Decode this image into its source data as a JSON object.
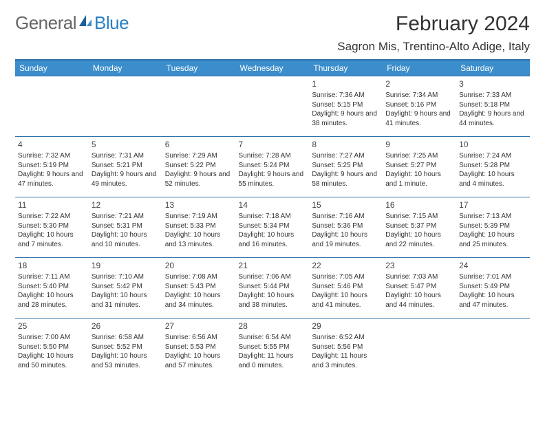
{
  "logo": {
    "text1": "General",
    "text2": "Blue"
  },
  "title": "February 2024",
  "subtitle": "Sagron Mis, Trentino-Alto Adige, Italy",
  "colors": {
    "header_bg": "#3b8dcb",
    "header_border": "#2d6fa8",
    "header_text": "#ffffff",
    "body_text": "#333333",
    "logo_accent": "#2d7fc4"
  },
  "weekdays": [
    "Sunday",
    "Monday",
    "Tuesday",
    "Wednesday",
    "Thursday",
    "Friday",
    "Saturday"
  ],
  "first_weekday_index": 4,
  "days": [
    {
      "n": 1,
      "sunrise": "7:36 AM",
      "sunset": "5:15 PM",
      "daylight": "9 hours and 38 minutes."
    },
    {
      "n": 2,
      "sunrise": "7:34 AM",
      "sunset": "5:16 PM",
      "daylight": "9 hours and 41 minutes."
    },
    {
      "n": 3,
      "sunrise": "7:33 AM",
      "sunset": "5:18 PM",
      "daylight": "9 hours and 44 minutes."
    },
    {
      "n": 4,
      "sunrise": "7:32 AM",
      "sunset": "5:19 PM",
      "daylight": "9 hours and 47 minutes."
    },
    {
      "n": 5,
      "sunrise": "7:31 AM",
      "sunset": "5:21 PM",
      "daylight": "9 hours and 49 minutes."
    },
    {
      "n": 6,
      "sunrise": "7:29 AM",
      "sunset": "5:22 PM",
      "daylight": "9 hours and 52 minutes."
    },
    {
      "n": 7,
      "sunrise": "7:28 AM",
      "sunset": "5:24 PM",
      "daylight": "9 hours and 55 minutes."
    },
    {
      "n": 8,
      "sunrise": "7:27 AM",
      "sunset": "5:25 PM",
      "daylight": "9 hours and 58 minutes."
    },
    {
      "n": 9,
      "sunrise": "7:25 AM",
      "sunset": "5:27 PM",
      "daylight": "10 hours and 1 minute."
    },
    {
      "n": 10,
      "sunrise": "7:24 AM",
      "sunset": "5:28 PM",
      "daylight": "10 hours and 4 minutes."
    },
    {
      "n": 11,
      "sunrise": "7:22 AM",
      "sunset": "5:30 PM",
      "daylight": "10 hours and 7 minutes."
    },
    {
      "n": 12,
      "sunrise": "7:21 AM",
      "sunset": "5:31 PM",
      "daylight": "10 hours and 10 minutes."
    },
    {
      "n": 13,
      "sunrise": "7:19 AM",
      "sunset": "5:33 PM",
      "daylight": "10 hours and 13 minutes."
    },
    {
      "n": 14,
      "sunrise": "7:18 AM",
      "sunset": "5:34 PM",
      "daylight": "10 hours and 16 minutes."
    },
    {
      "n": 15,
      "sunrise": "7:16 AM",
      "sunset": "5:36 PM",
      "daylight": "10 hours and 19 minutes."
    },
    {
      "n": 16,
      "sunrise": "7:15 AM",
      "sunset": "5:37 PM",
      "daylight": "10 hours and 22 minutes."
    },
    {
      "n": 17,
      "sunrise": "7:13 AM",
      "sunset": "5:39 PM",
      "daylight": "10 hours and 25 minutes."
    },
    {
      "n": 18,
      "sunrise": "7:11 AM",
      "sunset": "5:40 PM",
      "daylight": "10 hours and 28 minutes."
    },
    {
      "n": 19,
      "sunrise": "7:10 AM",
      "sunset": "5:42 PM",
      "daylight": "10 hours and 31 minutes."
    },
    {
      "n": 20,
      "sunrise": "7:08 AM",
      "sunset": "5:43 PM",
      "daylight": "10 hours and 34 minutes."
    },
    {
      "n": 21,
      "sunrise": "7:06 AM",
      "sunset": "5:44 PM",
      "daylight": "10 hours and 38 minutes."
    },
    {
      "n": 22,
      "sunrise": "7:05 AM",
      "sunset": "5:46 PM",
      "daylight": "10 hours and 41 minutes."
    },
    {
      "n": 23,
      "sunrise": "7:03 AM",
      "sunset": "5:47 PM",
      "daylight": "10 hours and 44 minutes."
    },
    {
      "n": 24,
      "sunrise": "7:01 AM",
      "sunset": "5:49 PM",
      "daylight": "10 hours and 47 minutes."
    },
    {
      "n": 25,
      "sunrise": "7:00 AM",
      "sunset": "5:50 PM",
      "daylight": "10 hours and 50 minutes."
    },
    {
      "n": 26,
      "sunrise": "6:58 AM",
      "sunset": "5:52 PM",
      "daylight": "10 hours and 53 minutes."
    },
    {
      "n": 27,
      "sunrise": "6:56 AM",
      "sunset": "5:53 PM",
      "daylight": "10 hours and 57 minutes."
    },
    {
      "n": 28,
      "sunrise": "6:54 AM",
      "sunset": "5:55 PM",
      "daylight": "11 hours and 0 minutes."
    },
    {
      "n": 29,
      "sunrise": "6:52 AM",
      "sunset": "5:56 PM",
      "daylight": "11 hours and 3 minutes."
    }
  ],
  "labels": {
    "sunrise": "Sunrise:",
    "sunset": "Sunset:",
    "daylight": "Daylight:"
  }
}
